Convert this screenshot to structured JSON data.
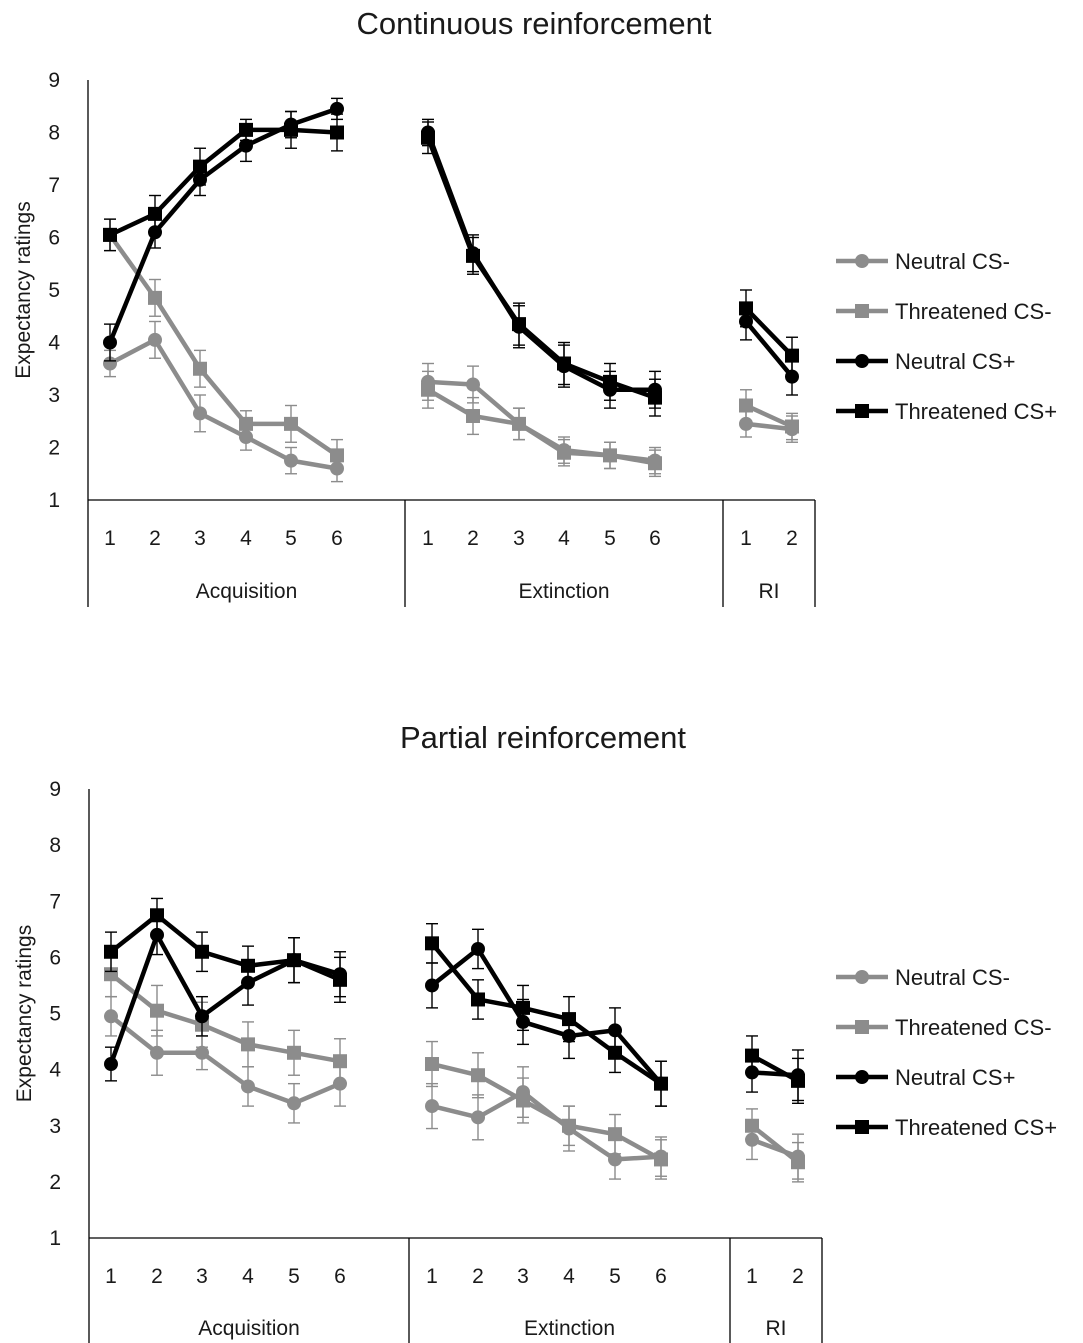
{
  "chart_data": [
    {
      "type": "line",
      "title": "Continuous reinforcement",
      "ylabel": "Expectancy ratings",
      "ylim": [
        1,
        9
      ],
      "yticks": [
        1,
        2,
        3,
        4,
        5,
        6,
        7,
        8,
        9
      ],
      "legend_position": "right",
      "groups": [
        {
          "name": "Acquisition",
          "x": [
            "1",
            "2",
            "3",
            "4",
            "5",
            "6"
          ]
        },
        {
          "name": "Extinction",
          "x": [
            "1",
            "2",
            "3",
            "4",
            "5",
            "6"
          ]
        },
        {
          "name": "RI",
          "x": [
            "1",
            "2"
          ]
        }
      ],
      "series": [
        {
          "name": "Neutral CS-",
          "color": "#8c8c8c",
          "marker": "circle",
          "values": [
            [
              3.6,
              4.05,
              2.65,
              2.2,
              1.75,
              1.6
            ],
            [
              3.25,
              3.2,
              2.45,
              1.95,
              1.85,
              1.75
            ],
            [
              2.45,
              2.35
            ]
          ],
          "errors": [
            [
              0.25,
              0.35,
              0.35,
              0.25,
              0.25,
              0.25
            ],
            [
              0.35,
              0.35,
              0.3,
              0.25,
              0.25,
              0.25
            ],
            [
              0.25,
              0.25
            ]
          ]
        },
        {
          "name": "Threatened CS-",
          "color": "#8c8c8c",
          "marker": "square",
          "values": [
            [
              6.05,
              4.85,
              3.5,
              2.45,
              2.45,
              1.85
            ],
            [
              3.1,
              2.6,
              2.45,
              1.9,
              1.85,
              1.7
            ],
            [
              2.8,
              2.4
            ]
          ],
          "errors": [
            [
              0.3,
              0.35,
              0.35,
              0.25,
              0.35,
              0.3
            ],
            [
              0.35,
              0.35,
              0.3,
              0.25,
              0.25,
              0.25
            ],
            [
              0.3,
              0.25
            ]
          ]
        },
        {
          "name": "Neutral CS+",
          "color": "#000000",
          "marker": "circle",
          "values": [
            [
              4.0,
              6.1,
              7.1,
              7.75,
              8.15,
              8.45
            ],
            [
              8.0,
              5.7,
              4.3,
              3.55,
              3.1,
              3.1
            ],
            [
              4.4,
              3.35
            ]
          ],
          "errors": [
            [
              0.35,
              0.3,
              0.3,
              0.3,
              0.25,
              0.2
            ],
            [
              0.25,
              0.35,
              0.4,
              0.4,
              0.35,
              0.35
            ],
            [
              0.35,
              0.35
            ]
          ]
        },
        {
          "name": "Threatened CS+",
          "color": "#000000",
          "marker": "square",
          "values": [
            [
              6.05,
              6.45,
              7.35,
              8.05,
              8.05,
              8.0
            ],
            [
              7.9,
              5.65,
              4.35,
              3.6,
              3.25,
              2.95
            ],
            [
              4.65,
              3.75
            ]
          ],
          "errors": [
            [
              0.3,
              0.35,
              0.35,
              0.2,
              0.35,
              0.35
            ],
            [
              0.3,
              0.35,
              0.4,
              0.4,
              0.35,
              0.35
            ],
            [
              0.35,
              0.35
            ]
          ]
        }
      ]
    },
    {
      "type": "line",
      "title": "Partial reinforcement",
      "ylabel": "Expectancy ratings",
      "ylim": [
        1,
        9
      ],
      "yticks": [
        1,
        2,
        3,
        4,
        5,
        6,
        7,
        8,
        9
      ],
      "legend_position": "right",
      "groups": [
        {
          "name": "Acquisition",
          "x": [
            "1",
            "2",
            "3",
            "4",
            "5",
            "6"
          ]
        },
        {
          "name": "Extinction",
          "x": [
            "1",
            "2",
            "3",
            "4",
            "5",
            "6"
          ]
        },
        {
          "name": "RI",
          "x": [
            "1",
            "2"
          ]
        }
      ],
      "series": [
        {
          "name": "Neutral CS-",
          "color": "#8c8c8c",
          "marker": "circle",
          "values": [
            [
              4.95,
              4.3,
              4.3,
              3.7,
              3.4,
              3.75
            ],
            [
              3.35,
              3.15,
              3.6,
              2.95,
              2.4,
              2.45
            ],
            [
              2.75,
              2.45
            ]
          ],
          "errors": [
            [
              0.35,
              0.4,
              0.3,
              0.35,
              0.35,
              0.4
            ],
            [
              0.4,
              0.4,
              0.45,
              0.4,
              0.35,
              0.35
            ],
            [
              0.35,
              0.4
            ]
          ]
        },
        {
          "name": "Threatened CS-",
          "color": "#8c8c8c",
          "marker": "square",
          "values": [
            [
              5.7,
              5.05,
              4.8,
              4.45,
              4.3,
              4.15
            ],
            [
              4.1,
              3.9,
              3.45,
              3.0,
              2.85,
              2.4
            ],
            [
              3.0,
              2.35
            ]
          ],
          "errors": [
            [
              0.4,
              0.45,
              0.4,
              0.4,
              0.4,
              0.4
            ],
            [
              0.4,
              0.4,
              0.4,
              0.35,
              0.35,
              0.35
            ],
            [
              0.3,
              0.35
            ]
          ]
        },
        {
          "name": "Neutral CS+",
          "color": "#000000",
          "marker": "circle",
          "values": [
            [
              4.1,
              6.4,
              4.95,
              5.55,
              5.95,
              5.7
            ],
            [
              5.5,
              6.15,
              4.85,
              4.6,
              4.7,
              3.75
            ],
            [
              3.95,
              3.9
            ]
          ],
          "errors": [
            [
              0.3,
              0.35,
              0.35,
              0.4,
              0.4,
              0.4
            ],
            [
              0.4,
              0.35,
              0.4,
              0.4,
              0.4,
              0.4
            ],
            [
              0.35,
              0.45
            ]
          ]
        },
        {
          "name": "Threatened CS+",
          "color": "#000000",
          "marker": "square",
          "values": [
            [
              6.1,
              6.75,
              6.1,
              5.85,
              5.95,
              5.6
            ],
            [
              6.25,
              5.25,
              5.1,
              4.9,
              4.3,
              3.75
            ],
            [
              4.25,
              3.8
            ]
          ],
          "errors": [
            [
              0.35,
              0.3,
              0.35,
              0.35,
              0.4,
              0.4
            ],
            [
              0.35,
              0.35,
              0.4,
              0.4,
              0.35,
              0.4
            ],
            [
              0.35,
              0.4
            ]
          ]
        }
      ]
    }
  ]
}
